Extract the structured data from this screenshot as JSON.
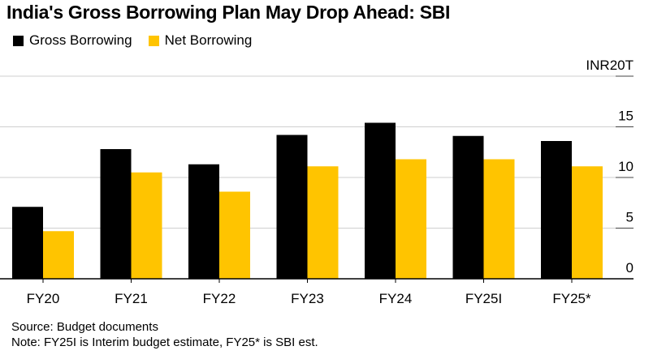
{
  "colors": {
    "gross": "#000000",
    "net": "#FFC400",
    "grid": "#cfcfcf",
    "axis": "#000000"
  },
  "chart_data": {
    "type": "bar",
    "title": "India's Gross Borrowing Plan May Drop Ahead: SBI",
    "categories": [
      "FY20",
      "FY21",
      "FY22",
      "FY23",
      "FY24",
      "FY25I",
      "FY25*"
    ],
    "series": [
      {
        "name": "Gross Borrowing",
        "values": [
          7.1,
          12.8,
          11.3,
          14.2,
          15.4,
          14.1,
          13.6
        ]
      },
      {
        "name": "Net Borrowing",
        "values": [
          4.7,
          10.5,
          8.6,
          11.1,
          11.8,
          11.8,
          11.1
        ]
      }
    ],
    "ylim": [
      0,
      20
    ],
    "yticks": [
      {
        "value": 0,
        "label": "0"
      },
      {
        "value": 5,
        "label": "5"
      },
      {
        "value": 10,
        "label": "10"
      },
      {
        "value": 15,
        "label": "15"
      },
      {
        "value": 20,
        "label": "INR20T"
      }
    ],
    "xlabel": "",
    "ylabel": "",
    "legend_position": "top-left",
    "grid": true
  },
  "footer": {
    "source": "Source: Budget documents",
    "note": "Note: FY25I is Interim budget estimate, FY25* is SBI est."
  }
}
